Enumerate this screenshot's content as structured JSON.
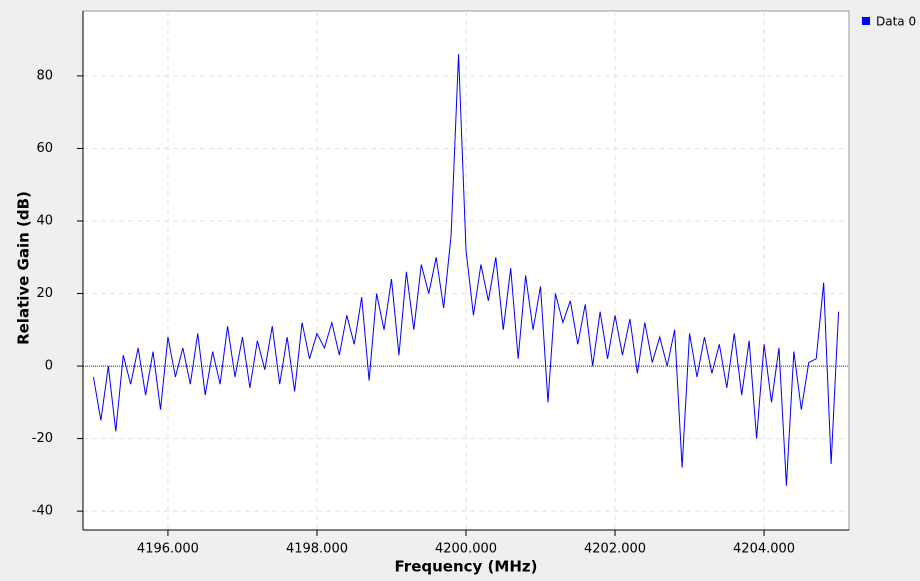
{
  "chart_data": {
    "type": "line",
    "xlabel": "Frequency (MHz)",
    "ylabel": "Relative Gain (dB)",
    "x": [
      4195.0,
      4195.1,
      4195.2,
      4195.3,
      4195.4,
      4195.5,
      4195.6,
      4195.7,
      4195.8,
      4195.9,
      4196.0,
      4196.1,
      4196.2,
      4196.3,
      4196.4,
      4196.5,
      4196.6,
      4196.7,
      4196.8,
      4196.9,
      4197.0,
      4197.1,
      4197.2,
      4197.3,
      4197.4,
      4197.5,
      4197.6,
      4197.7,
      4197.8,
      4197.9,
      4198.0,
      4198.1,
      4198.2,
      4198.3,
      4198.4,
      4198.5,
      4198.6,
      4198.7,
      4198.8,
      4198.9,
      4199.0,
      4199.1,
      4199.2,
      4199.3,
      4199.4,
      4199.5,
      4199.6,
      4199.7,
      4199.8,
      4199.9,
      4200.0,
      4200.1,
      4200.2,
      4200.3,
      4200.4,
      4200.5,
      4200.6,
      4200.7,
      4200.8,
      4200.9,
      4201.0,
      4201.1,
      4201.2,
      4201.3,
      4201.4,
      4201.5,
      4201.6,
      4201.7,
      4201.8,
      4201.9,
      4202.0,
      4202.1,
      4202.2,
      4202.3,
      4202.4,
      4202.5,
      4202.6,
      4202.7,
      4202.8,
      4202.9,
      4203.0,
      4203.1,
      4203.2,
      4203.3,
      4203.4,
      4203.5,
      4203.6,
      4203.7,
      4203.8,
      4203.9,
      4204.0,
      4204.1,
      4204.2,
      4204.3,
      4204.4,
      4204.5,
      4204.6,
      4204.7,
      4204.8,
      4204.9,
      4205.0
    ],
    "series": [
      {
        "name": "Data 0",
        "color": "#0000ff",
        "values": [
          -3,
          -15,
          0,
          -18,
          3,
          -5,
          5,
          -8,
          4,
          -12,
          8,
          -3,
          5,
          -5,
          9,
          -8,
          4,
          -5,
          11,
          -3,
          8,
          -6,
          7,
          -1,
          11,
          -5,
          8,
          -7,
          12,
          2,
          9,
          5,
          12,
          3,
          14,
          6,
          19,
          -4,
          20,
          10,
          24,
          3,
          26,
          10,
          28,
          20,
          30,
          16,
          36,
          86,
          32,
          14,
          28,
          18,
          30,
          10,
          27,
          2,
          25,
          10,
          22,
          -10,
          20,
          12,
          18,
          6,
          17,
          0,
          15,
          2,
          14,
          3,
          13,
          -2,
          12,
          1,
          8,
          0,
          10,
          -28,
          9,
          -3,
          8,
          -2,
          6,
          -6,
          9,
          -8,
          7,
          -20,
          6,
          -10,
          5,
          -33,
          4,
          -12,
          1,
          2,
          23,
          -27,
          15
        ]
      }
    ],
    "xlim": [
      4194.86,
      4205.14
    ],
    "ylim": [
      -45.2,
      97.9
    ],
    "xticks": [
      {
        "value": 4196,
        "label": "4196.000"
      },
      {
        "value": 4198,
        "label": "4198.000"
      },
      {
        "value": 4200,
        "label": "4200.000"
      },
      {
        "value": 4202,
        "label": "4202.000"
      },
      {
        "value": 4204,
        "label": "4204.000"
      }
    ],
    "yticks": [
      -40,
      -20,
      0,
      20,
      40,
      60,
      80
    ],
    "grid": true
  }
}
